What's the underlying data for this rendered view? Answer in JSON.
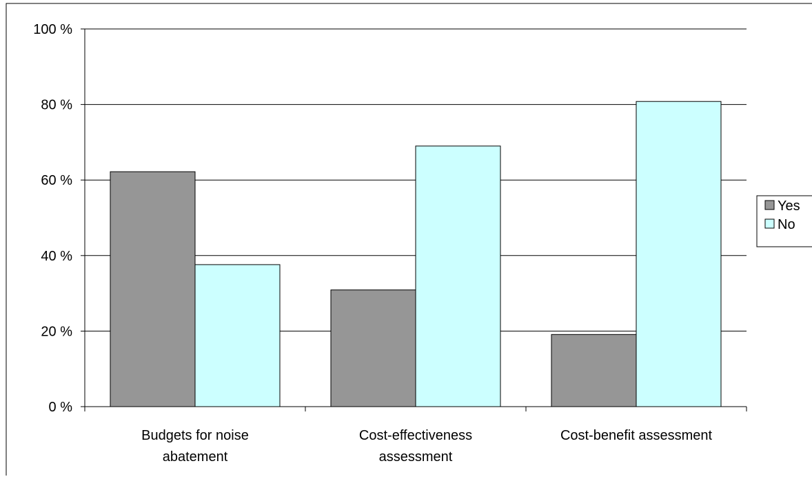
{
  "chart_data": {
    "type": "bar",
    "title": "",
    "xlabel": "",
    "ylabel": "",
    "categories": [
      [
        "Budgets for noise",
        "abatement"
      ],
      [
        "Cost-effectiveness",
        "assessment"
      ],
      [
        "Cost-benefit assessment"
      ]
    ],
    "series": [
      {
        "name": "Yes",
        "values": [
          62.2,
          30.9,
          19.1
        ],
        "color": "#969696"
      },
      {
        "name": "No",
        "values": [
          37.6,
          69.0,
          80.8
        ],
        "color": "#ccffff"
      }
    ],
    "ylim": [
      0,
      100
    ],
    "yticks": [
      0,
      20,
      40,
      60,
      80,
      100
    ],
    "ytick_labels": [
      "0 %",
      "20 %",
      "40 %",
      "60 %",
      "80 %",
      "100 %"
    ],
    "grid": true,
    "legend_position": "right"
  }
}
